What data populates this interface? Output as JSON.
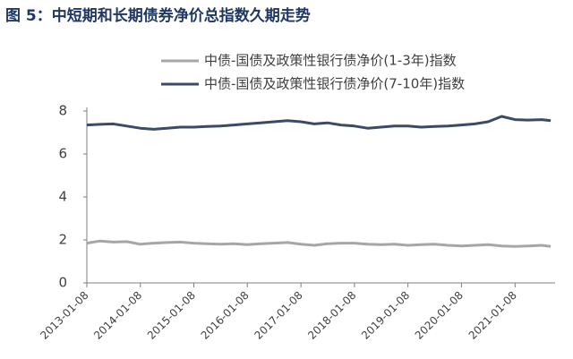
{
  "chart_data": {
    "type": "line",
    "title": "图 5：中短期和长期债券净价总指数久期走势",
    "legend": "top-right",
    "x": [
      "2013-01-08",
      "2013-04-08",
      "2013-07-08",
      "2013-10-08",
      "2014-01-08",
      "2014-04-08",
      "2014-07-08",
      "2014-10-08",
      "2015-01-08",
      "2015-04-08",
      "2015-07-08",
      "2015-10-08",
      "2016-01-08",
      "2016-04-08",
      "2016-07-08",
      "2016-10-08",
      "2017-01-08",
      "2017-04-08",
      "2017-07-08",
      "2017-10-08",
      "2018-01-08",
      "2018-04-08",
      "2018-07-08",
      "2018-10-08",
      "2019-01-08",
      "2019-04-08",
      "2019-07-08",
      "2019-10-08",
      "2020-01-08",
      "2020-04-08",
      "2020-07-08",
      "2020-10-08",
      "2021-01-08",
      "2021-04-08",
      "2021-07-08",
      "2021-09-08"
    ],
    "series": [
      {
        "name": "中债-国债及政策性银行债净价(1-3年)指数",
        "color": "#a6a6a6",
        "values": [
          1.85,
          1.95,
          1.9,
          1.92,
          1.8,
          1.85,
          1.88,
          1.9,
          1.85,
          1.82,
          1.8,
          1.82,
          1.78,
          1.82,
          1.85,
          1.88,
          1.8,
          1.75,
          1.82,
          1.85,
          1.85,
          1.8,
          1.78,
          1.8,
          1.75,
          1.78,
          1.8,
          1.75,
          1.72,
          1.75,
          1.78,
          1.72,
          1.7,
          1.72,
          1.75,
          1.7
        ]
      },
      {
        "name": "中债-国债及政策性银行债净价(7-10年)指数",
        "color": "#3b4a66",
        "values": [
          7.35,
          7.38,
          7.4,
          7.3,
          7.2,
          7.15,
          7.2,
          7.25,
          7.25,
          7.28,
          7.3,
          7.35,
          7.4,
          7.45,
          7.5,
          7.55,
          7.5,
          7.4,
          7.45,
          7.35,
          7.3,
          7.2,
          7.25,
          7.3,
          7.3,
          7.25,
          7.28,
          7.3,
          7.35,
          7.4,
          7.5,
          7.75,
          7.6,
          7.58,
          7.6,
          7.55
        ]
      }
    ],
    "xlim": [
      "2013-01-08",
      "2021-10-08"
    ],
    "xticks": [
      "2013-01-08",
      "2014-01-08",
      "2015-01-08",
      "2016-01-08",
      "2017-01-08",
      "2018-01-08",
      "2019-01-08",
      "2020-01-08",
      "2021-01-08"
    ],
    "ylim": [
      0,
      8
    ],
    "yticks": [
      0,
      2,
      4,
      6,
      8
    ]
  }
}
